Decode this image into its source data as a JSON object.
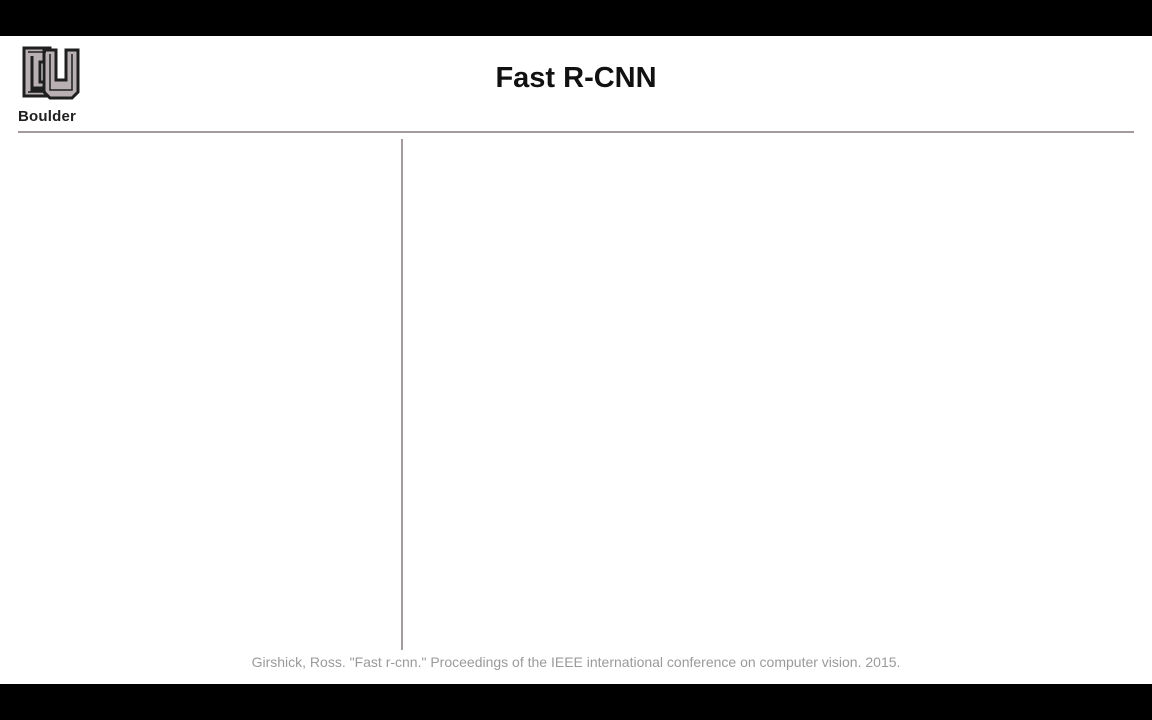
{
  "header": {
    "logo_text": "Boulder",
    "title": "Fast R-CNN"
  },
  "footer": {
    "citation": "Girshick, Ross. \"Fast r-cnn.\" Proceedings of the IEEE international conference on computer vision. 2015."
  },
  "colors": {
    "rule": "#a59a9c",
    "logo_fill": "#b8b0b2",
    "logo_stroke": "#1f1f1f",
    "citation": "#9a9a9a"
  },
  "icons": {
    "logo": "cu-boulder-logo-icon"
  }
}
